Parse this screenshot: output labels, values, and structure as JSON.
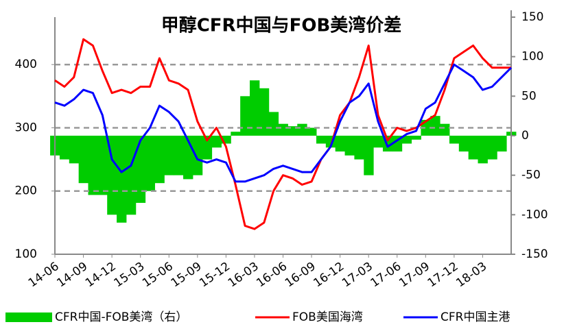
{
  "chart_data": {
    "type": "line",
    "title": "甲醇CFR中国与FOB美湾价差",
    "categories": [
      "14-06",
      null,
      null,
      "14-09",
      null,
      null,
      "14-12",
      null,
      null,
      "15-03",
      null,
      null,
      "15-06",
      null,
      null,
      "15-09",
      null,
      null,
      "15-12",
      null,
      null,
      "16-03",
      null,
      null,
      "16-06",
      null,
      null,
      "16-09",
      null,
      null,
      "16-12",
      null,
      null,
      "17-03",
      null,
      null,
      "17-06",
      null,
      null,
      "17-09",
      null,
      null,
      "17-12",
      null,
      null,
      "18-03",
      null,
      null,
      null
    ],
    "series": [
      {
        "name": "CFR中国-FOB美湾（右）",
        "color": "#00cc00",
        "axis": "y2",
        "kind": "bar",
        "values": [
          -25,
          -30,
          -35,
          -60,
          -75,
          -75,
          -100,
          -110,
          -100,
          -85,
          -70,
          -60,
          -50,
          -50,
          -55,
          -50,
          -30,
          -15,
          -10,
          5,
          50,
          70,
          60,
          30,
          15,
          12,
          15,
          10,
          -10,
          -15,
          -20,
          -25,
          -30,
          -50,
          -15,
          -20,
          -20,
          -10,
          -5,
          20,
          25,
          15,
          -10,
          -20,
          -30,
          -35,
          -30,
          -20,
          5
        ]
      },
      {
        "name": "FOB美国海湾",
        "color": "#ff0000",
        "values": [
          375,
          365,
          380,
          440,
          430,
          390,
          355,
          360,
          355,
          365,
          365,
          410,
          375,
          370,
          360,
          310,
          280,
          300,
          270,
          210,
          145,
          140,
          150,
          200,
          225,
          220,
          210,
          215,
          250,
          270,
          320,
          340,
          380,
          430,
          320,
          280,
          300,
          295,
          300,
          310,
          320,
          360,
          410,
          420,
          430,
          410,
          395,
          395,
          395
        ]
      },
      {
        "name": "CFR中国主港",
        "color": "#0000ff",
        "values": [
          340,
          335,
          345,
          360,
          355,
          320,
          250,
          230,
          240,
          280,
          300,
          335,
          325,
          310,
          280,
          250,
          245,
          250,
          245,
          215,
          215,
          220,
          225,
          235,
          240,
          235,
          230,
          230,
          250,
          270,
          310,
          340,
          350,
          370,
          310,
          270,
          280,
          290,
          295,
          330,
          340,
          370,
          400,
          390,
          380,
          360,
          365,
          380,
          395
        ]
      }
    ],
    "ylim": [
      100,
      475
    ],
    "yticks": [
      100,
      200,
      300,
      400
    ],
    "y2lim": [
      -150,
      150
    ],
    "y2ticks": [
      -150,
      -100,
      -50,
      0,
      50,
      100,
      150
    ],
    "grid": true
  }
}
